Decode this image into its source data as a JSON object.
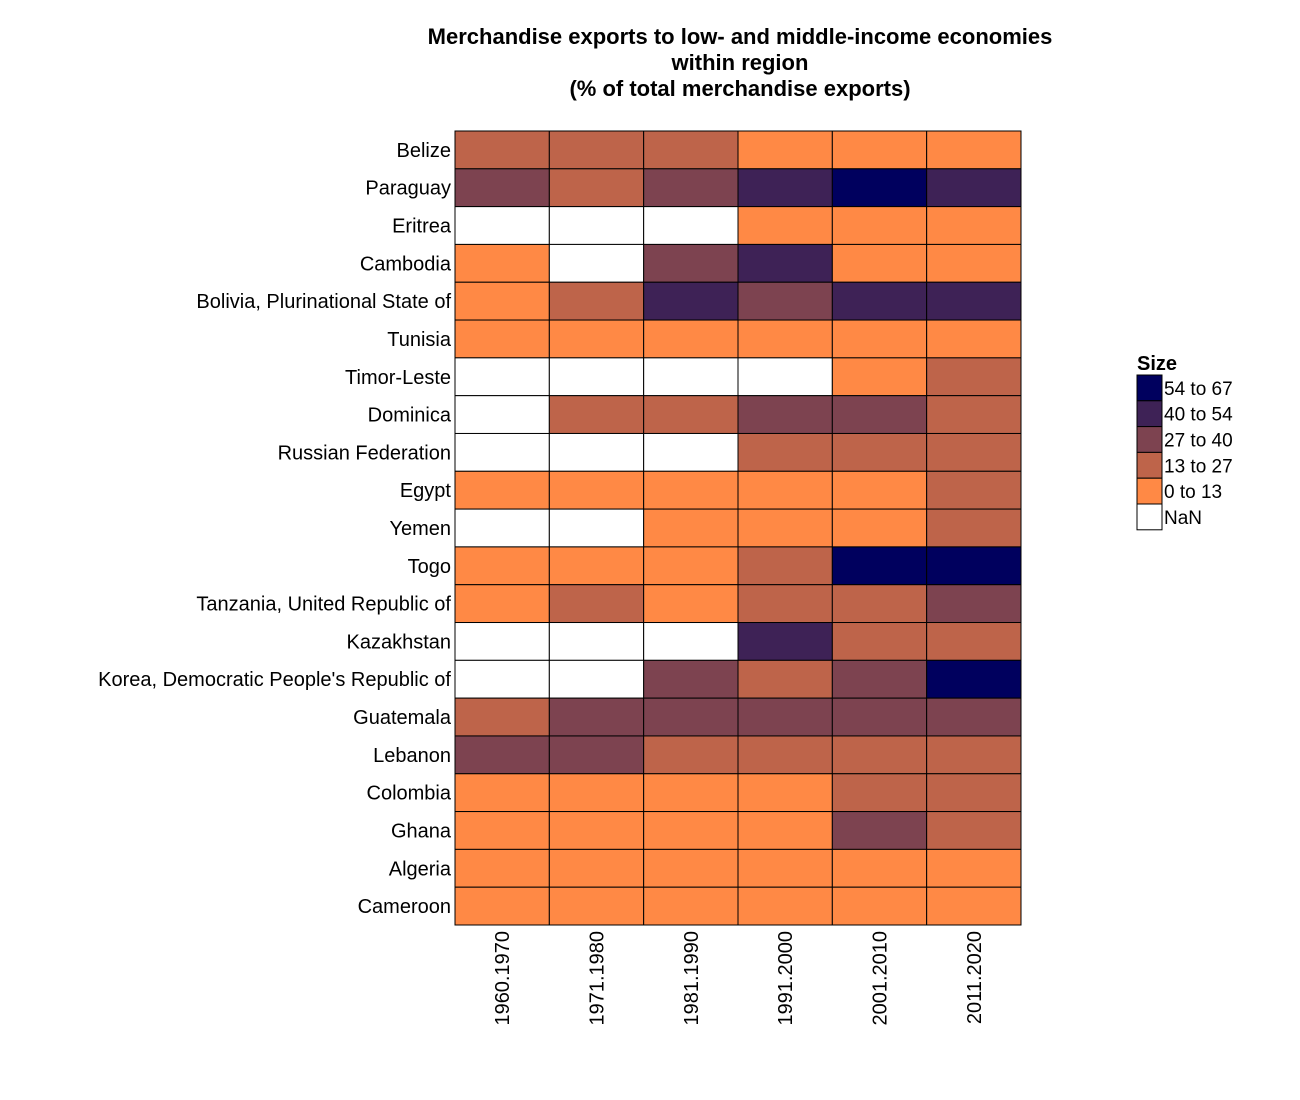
{
  "chart_data": {
    "type": "heatmap",
    "title": [
      "Merchandise exports to low- and middle-income economies",
      "within region",
      "(% of total merchandise exports)"
    ],
    "x": [
      "1960.1970",
      "1971.1980",
      "1981.1990",
      "1991.2000",
      "2001.2010",
      "2011.2020"
    ],
    "y": [
      "Belize",
      "Paraguay",
      "Eritrea",
      "Cambodia",
      "Bolivia, Plurinational State of",
      "Tunisia",
      "Timor-Leste",
      "Dominica",
      "Russian Federation",
      "Egypt",
      "Yemen",
      "Togo",
      "Tanzania, United Republic of",
      "Kazakhstan",
      "Korea, Democratic People's Republic of",
      "Guatemala",
      "Lebanon",
      "Colombia",
      "Ghana",
      "Algeria",
      "Cameroon"
    ],
    "bins": [
      "0 to 13",
      "13 to 27",
      "27 to 40",
      "40 to 54",
      "54 to 67",
      "NaN"
    ],
    "values": [
      [
        "13 to 27",
        "13 to 27",
        "13 to 27",
        "0 to 13",
        "0 to 13",
        "0 to 13"
      ],
      [
        "27 to 40",
        "13 to 27",
        "27 to 40",
        "40 to 54",
        "54 to 67",
        "40 to 54"
      ],
      [
        "NaN",
        "NaN",
        "NaN",
        "0 to 13",
        "0 to 13",
        "0 to 13"
      ],
      [
        "0 to 13",
        "NaN",
        "27 to 40",
        "40 to 54",
        "0 to 13",
        "0 to 13"
      ],
      [
        "0 to 13",
        "13 to 27",
        "40 to 54",
        "27 to 40",
        "40 to 54",
        "40 to 54"
      ],
      [
        "0 to 13",
        "0 to 13",
        "0 to 13",
        "0 to 13",
        "0 to 13",
        "0 to 13"
      ],
      [
        "NaN",
        "NaN",
        "NaN",
        "NaN",
        "0 to 13",
        "13 to 27"
      ],
      [
        "NaN",
        "13 to 27",
        "13 to 27",
        "27 to 40",
        "27 to 40",
        "13 to 27"
      ],
      [
        "NaN",
        "NaN",
        "NaN",
        "13 to 27",
        "13 to 27",
        "13 to 27"
      ],
      [
        "0 to 13",
        "0 to 13",
        "0 to 13",
        "0 to 13",
        "0 to 13",
        "13 to 27"
      ],
      [
        "NaN",
        "NaN",
        "0 to 13",
        "0 to 13",
        "0 to 13",
        "13 to 27"
      ],
      [
        "0 to 13",
        "0 to 13",
        "0 to 13",
        "13 to 27",
        "54 to 67",
        "54 to 67"
      ],
      [
        "0 to 13",
        "13 to 27",
        "0 to 13",
        "13 to 27",
        "13 to 27",
        "27 to 40"
      ],
      [
        "NaN",
        "NaN",
        "NaN",
        "40 to 54",
        "13 to 27",
        "13 to 27"
      ],
      [
        "NaN",
        "NaN",
        "27 to 40",
        "13 to 27",
        "27 to 40",
        "54 to 67"
      ],
      [
        "13 to 27",
        "27 to 40",
        "27 to 40",
        "27 to 40",
        "27 to 40",
        "27 to 40"
      ],
      [
        "27 to 40",
        "27 to 40",
        "13 to 27",
        "13 to 27",
        "13 to 27",
        "13 to 27"
      ],
      [
        "0 to 13",
        "0 to 13",
        "0 to 13",
        "0 to 13",
        "13 to 27",
        "13 to 27"
      ],
      [
        "0 to 13",
        "0 to 13",
        "0 to 13",
        "0 to 13",
        "27 to 40",
        "13 to 27"
      ],
      [
        "0 to 13",
        "0 to 13",
        "0 to 13",
        "0 to 13",
        "0 to 13",
        "0 to 13"
      ],
      [
        "0 to 13",
        "0 to 13",
        "0 to 13",
        "0 to 13",
        "0 to 13",
        "0 to 13"
      ]
    ],
    "colors": {
      "0 to 13": "#ff8945",
      "13 to 27": "#be644a",
      "27 to 40": "#7d4350",
      "40 to 54": "#3e2256",
      "54 to 67": "#00005e",
      "NaN": "#ffffff"
    },
    "legend": {
      "title": "Size",
      "entries": [
        "54 to 67",
        "40 to 54",
        "27 to 40",
        "13 to 27",
        "0 to 13",
        "NaN"
      ],
      "placement": "right"
    },
    "xlabel": "",
    "ylabel": "",
    "grid": false
  }
}
